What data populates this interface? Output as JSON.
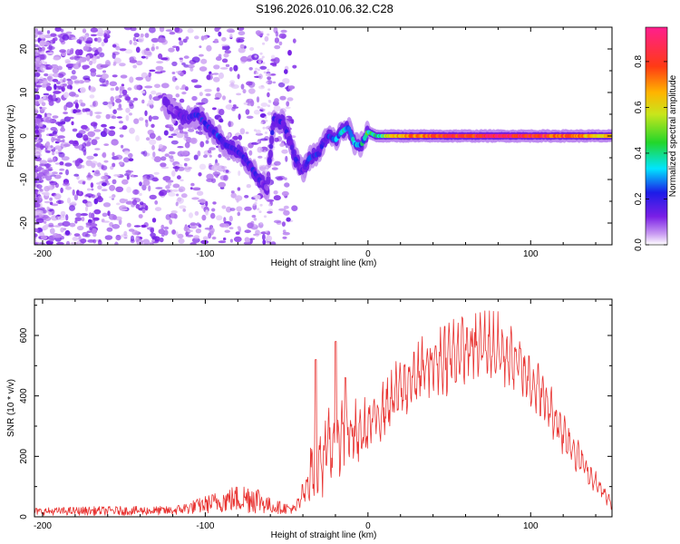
{
  "title": "S196.2026.010.06.32.C28",
  "chart_data": [
    {
      "type": "heatmap",
      "xlabel": "Height of straight line (km)",
      "ylabel": "Frequency (Hz)",
      "xlim": [
        -205,
        150
      ],
      "ylim": [
        -25,
        25
      ],
      "xticks": [
        -200,
        -100,
        0,
        100
      ],
      "yticks": [
        -20,
        -10,
        0,
        10,
        20
      ],
      "colorbar": {
        "label": "Normalized spectral amplitude",
        "range": [
          0,
          0.95
        ],
        "ticks": [
          "0.0",
          "0.2",
          "0.4",
          "0.6",
          "0.8"
        ],
        "tick_values": [
          0,
          0.2,
          0.4,
          0.6,
          0.8
        ]
      },
      "ridge": [
        {
          "x": -120,
          "y": 6,
          "a": 0.15
        },
        {
          "x": -112,
          "y": 4,
          "a": 0.2
        },
        {
          "x": -105,
          "y": 5,
          "a": 0.25
        },
        {
          "x": -98,
          "y": 2,
          "a": 0.25
        },
        {
          "x": -92,
          "y": 0,
          "a": 0.3
        },
        {
          "x": -88,
          "y": -2,
          "a": 0.2
        },
        {
          "x": -82,
          "y": -3,
          "a": 0.25
        },
        {
          "x": -76,
          "y": -5,
          "a": 0.3
        },
        {
          "x": -72,
          "y": -7,
          "a": 0.25
        },
        {
          "x": -67,
          "y": -10,
          "a": 0.2
        },
        {
          "x": -62,
          "y": -12,
          "a": 0.15
        },
        {
          "x": -58,
          "y": 4,
          "a": 0.25
        },
        {
          "x": -52,
          "y": 3,
          "a": 0.25
        },
        {
          "x": -48,
          "y": -1,
          "a": 0.2
        },
        {
          "x": -45,
          "y": -5,
          "a": 0.25
        },
        {
          "x": -40,
          "y": -8,
          "a": 0.2
        },
        {
          "x": -36,
          "y": -5,
          "a": 0.3
        },
        {
          "x": -30,
          "y": -4,
          "a": 0.25
        },
        {
          "x": -27,
          "y": -1,
          "a": 0.25
        },
        {
          "x": -24,
          "y": 0,
          "a": 0.3
        },
        {
          "x": -20,
          "y": -1,
          "a": 0.35
        },
        {
          "x": -16,
          "y": 1,
          "a": 0.4
        },
        {
          "x": -12,
          "y": 2,
          "a": 0.45
        },
        {
          "x": -8,
          "y": -2,
          "a": 0.4
        },
        {
          "x": -4,
          "y": -2,
          "a": 0.45
        },
        {
          "x": 0,
          "y": 1,
          "a": 0.5
        },
        {
          "x": 5,
          "y": 0,
          "a": 0.55
        },
        {
          "x": 12,
          "y": 0,
          "a": 0.6
        },
        {
          "x": 25,
          "y": 0,
          "a": 0.75
        },
        {
          "x": 45,
          "y": 0,
          "a": 0.8
        },
        {
          "x": 65,
          "y": 0,
          "a": 0.85
        },
        {
          "x": 85,
          "y": 0,
          "a": 0.9
        },
        {
          "x": 105,
          "y": 0,
          "a": 0.85
        },
        {
          "x": 125,
          "y": 0,
          "a": 0.75
        },
        {
          "x": 145,
          "y": 0,
          "a": 0.65
        }
      ]
    },
    {
      "type": "line",
      "xlabel": "Height of straight line (km)",
      "ylabel": "SNR (10 * v/v)",
      "xlim": [
        -205,
        150
      ],
      "ylim": [
        0,
        720
      ],
      "xticks": [
        -200,
        -100,
        0,
        100
      ],
      "yticks": [
        0,
        200,
        400,
        600
      ],
      "color": "#e8312f",
      "envelope": [
        {
          "x": -205,
          "lo": 5,
          "hi": 30
        },
        {
          "x": -160,
          "lo": 5,
          "hi": 35
        },
        {
          "x": -120,
          "lo": 5,
          "hi": 35
        },
        {
          "x": -105,
          "lo": 10,
          "hi": 60
        },
        {
          "x": -85,
          "lo": 15,
          "hi": 100
        },
        {
          "x": -70,
          "lo": 10,
          "hi": 120
        },
        {
          "x": -60,
          "lo": 10,
          "hi": 60
        },
        {
          "x": -45,
          "lo": 10,
          "hi": 40
        },
        {
          "x": -40,
          "lo": 20,
          "hi": 120
        },
        {
          "x": -33,
          "lo": 40,
          "hi": 320
        },
        {
          "x": -25,
          "lo": 60,
          "hi": 380
        },
        {
          "x": -15,
          "lo": 120,
          "hi": 440
        },
        {
          "x": -5,
          "lo": 150,
          "hi": 380
        },
        {
          "x": 5,
          "lo": 220,
          "hi": 440
        },
        {
          "x": 20,
          "lo": 300,
          "hi": 540
        },
        {
          "x": 40,
          "lo": 380,
          "hi": 640
        },
        {
          "x": 60,
          "lo": 420,
          "hi": 690
        },
        {
          "x": 75,
          "lo": 430,
          "hi": 700
        },
        {
          "x": 90,
          "lo": 400,
          "hi": 640
        },
        {
          "x": 105,
          "lo": 320,
          "hi": 520
        },
        {
          "x": 120,
          "lo": 200,
          "hi": 360
        },
        {
          "x": 135,
          "lo": 100,
          "hi": 200
        },
        {
          "x": 150,
          "lo": 20,
          "hi": 60
        }
      ],
      "spikes": [
        {
          "x": -32,
          "y": 520
        },
        {
          "x": -20,
          "y": 580
        },
        {
          "x": -14,
          "y": 460
        }
      ]
    }
  ]
}
